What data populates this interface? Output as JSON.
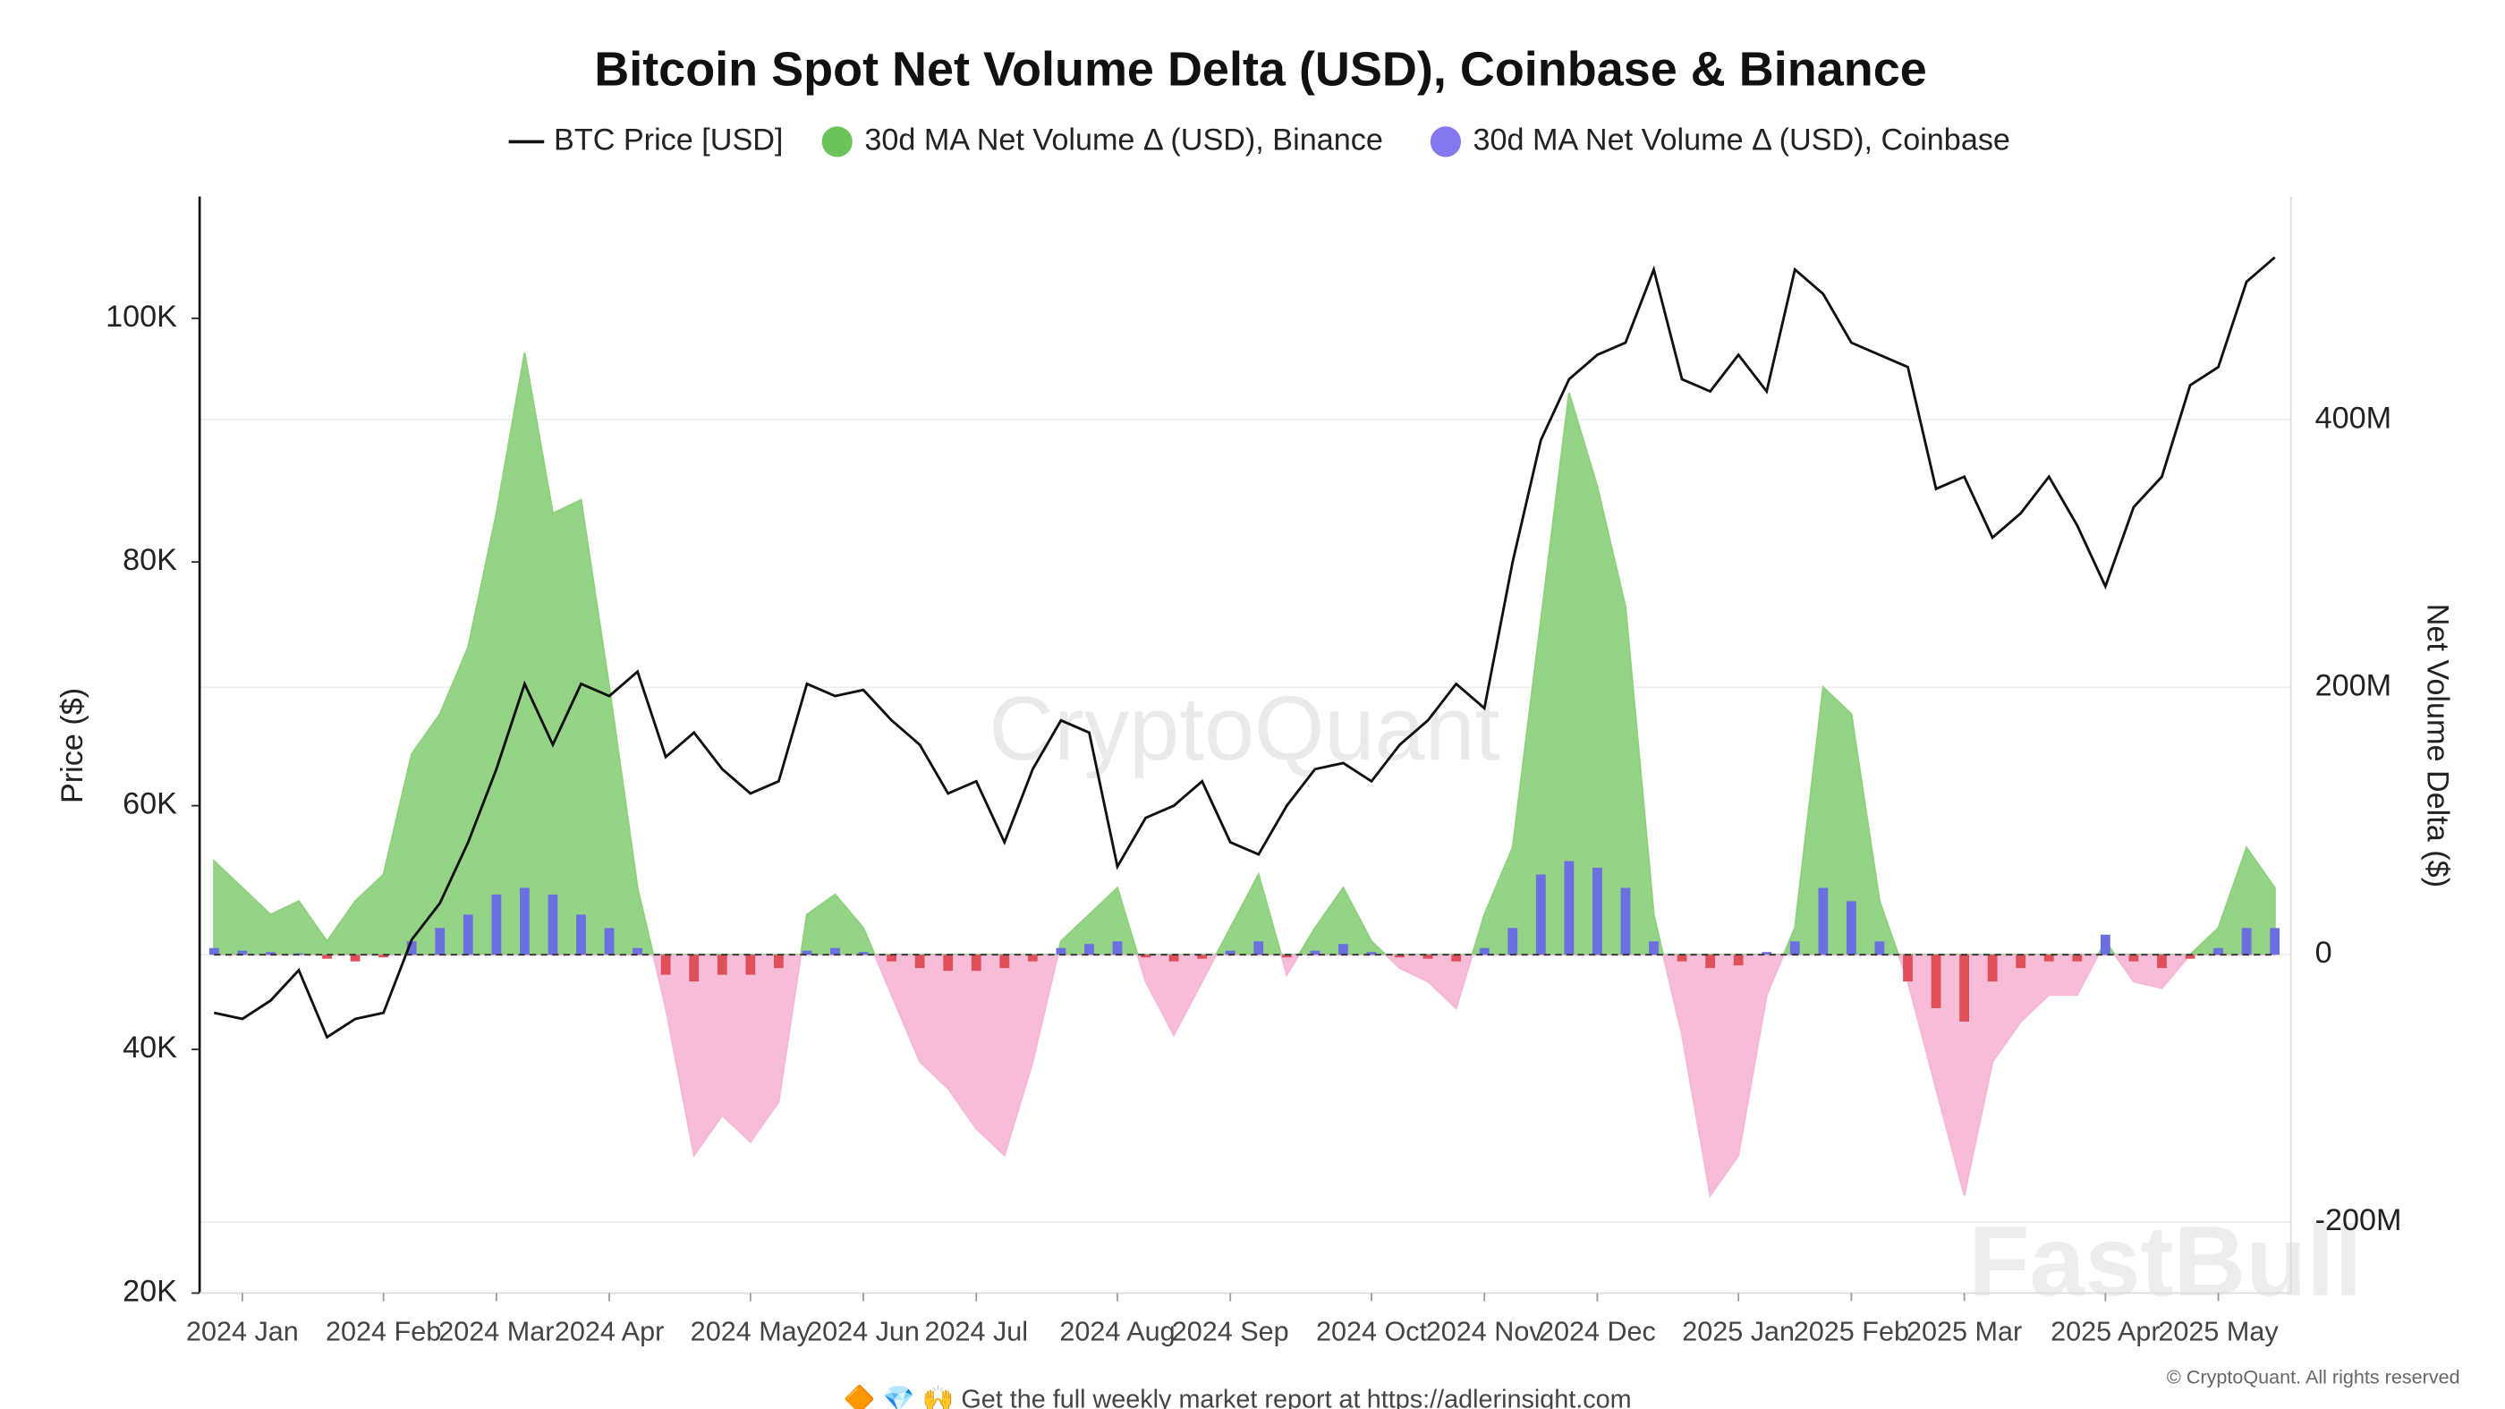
{
  "chart_data": {
    "type": "combo",
    "title": "Bitcoin Spot Net Volume Delta (USD), Coinbase & Binance",
    "y_label": "Price ($)",
    "y2_label": "Net Volume Delta ($)",
    "watermark": "CryptoQuant",
    "watermark2": "FastBull",
    "footer": "🔶 💎 🙌 Get the full weekly market report at",
    "footer_link": "https://adlerinsight.com",
    "copyright": "© CryptoQuant. All rights reserved",
    "categories": [
      null,
      "2024 Jan",
      null,
      null,
      null,
      null,
      "2024 Feb",
      null,
      null,
      null,
      "2024 Mar",
      null,
      null,
      null,
      "2024 Apr",
      null,
      null,
      null,
      null,
      "2024 May",
      null,
      null,
      null,
      "2024 Jun",
      null,
      null,
      null,
      "2024 Jul",
      null,
      null,
      null,
      null,
      "2024 Aug",
      null,
      null,
      null,
      "2024 Sep",
      null,
      null,
      null,
      null,
      "2024 Oct",
      null,
      null,
      null,
      "2024 Nov",
      null,
      null,
      null,
      "2024 Dec",
      null,
      null,
      null,
      null,
      "2025 Jan",
      null,
      null,
      null,
      "2025 Feb",
      null,
      null,
      null,
      "2025 Mar",
      null,
      null,
      null,
      null,
      "2025 Apr",
      null,
      null,
      null,
      "2025 May",
      null,
      null
    ],
    "ylim": [
      20000,
      110000
    ],
    "yticks": [
      {
        "value": 20000,
        "label": "20K"
      },
      {
        "value": 40000,
        "label": "40K"
      },
      {
        "value": 60000,
        "label": "60K"
      },
      {
        "value": 80000,
        "label": "80K"
      },
      {
        "value": 100000,
        "label": "100K"
      }
    ],
    "y2lim": [
      -253000000,
      567000000
    ],
    "y2ticks": [
      {
        "value": -200000000,
        "label": "-200M"
      },
      0,
      {
        "value": 200000000,
        "label": "200M"
      },
      {
        "value": 400000000,
        "label": "400M"
      }
    ],
    "grid": true,
    "legend": "top",
    "series": [
      {
        "name": "BTC Price [USD]",
        "kind": "line",
        "color": "#111111",
        "values": [
          43000,
          42500,
          44000,
          46500,
          41000,
          42500,
          43000,
          49000,
          52000,
          57000,
          63000,
          70000,
          65000,
          70000,
          69000,
          71000,
          64000,
          66000,
          63000,
          61000,
          62000,
          70000,
          69000,
          69500,
          67000,
          65000,
          61000,
          62000,
          57000,
          63000,
          67000,
          66000,
          55000,
          59000,
          60000,
          62000,
          57000,
          56000,
          60000,
          63000,
          63500,
          62000,
          65000,
          67000,
          70000,
          68000,
          80000,
          90000,
          95000,
          97000,
          98000,
          104000,
          95000,
          94000,
          97000,
          94000,
          104000,
          102000,
          98000,
          97000,
          96000,
          86000,
          87000,
          82000,
          84000,
          87000,
          83000,
          78000,
          84500,
          87000,
          94500,
          96000,
          103000,
          105000
        ]
      },
      {
        "name": "30d MA Net Volume Δ (USD), Binance",
        "kind": "area",
        "axis": "y2",
        "color": "#8fd17f",
        "negative_color": "#f5b8d6",
        "legend_color": "#6cc35a",
        "values": [
          70000000,
          50000000,
          30000000,
          40000000,
          10000000,
          40000000,
          60000000,
          150000000,
          180000000,
          230000000,
          330000000,
          450000000,
          330000000,
          340000000,
          200000000,
          50000000,
          -40000000,
          -150000000,
          -120000000,
          -140000000,
          -110000000,
          30000000,
          45000000,
          20000000,
          -30000000,
          -80000000,
          -100000000,
          -130000000,
          -150000000,
          -80000000,
          10000000,
          30000000,
          50000000,
          -20000000,
          -60000000,
          -20000000,
          20000000,
          60000000,
          -15000000,
          20000000,
          50000000,
          10000000,
          -10000000,
          -20000000,
          -40000000,
          30000000,
          80000000,
          250000000,
          420000000,
          350000000,
          260000000,
          30000000,
          -60000000,
          -180000000,
          -150000000,
          -30000000,
          20000000,
          200000000,
          180000000,
          40000000,
          -20000000,
          -100000000,
          -180000000,
          -80000000,
          -50000000,
          -30000000,
          -30000000,
          10000000,
          -20000000,
          -25000000,
          0,
          20000000,
          80000000,
          50000000
        ]
      },
      {
        "name": "30d MA Net Volume Δ (USD), Coinbase",
        "kind": "bar",
        "axis": "y2",
        "color": "#6b6fe0",
        "negative_color": "#e0505a",
        "legend_color": "#8378f0",
        "values": [
          5000000,
          3000000,
          2000000,
          1000000,
          -3000000,
          -5000000,
          -2000000,
          10000000,
          20000000,
          30000000,
          45000000,
          50000000,
          45000000,
          30000000,
          20000000,
          5000000,
          -15000000,
          -20000000,
          -15000000,
          -15000000,
          -10000000,
          3000000,
          5000000,
          2000000,
          -5000000,
          -10000000,
          -12000000,
          -12000000,
          -10000000,
          -5000000,
          5000000,
          8000000,
          10000000,
          -2000000,
          -5000000,
          -3000000,
          3000000,
          10000000,
          -2000000,
          3000000,
          8000000,
          2000000,
          -2000000,
          -3000000,
          -5000000,
          5000000,
          20000000,
          60000000,
          70000000,
          65000000,
          50000000,
          10000000,
          -5000000,
          -10000000,
          -8000000,
          2000000,
          10000000,
          50000000,
          40000000,
          10000000,
          -20000000,
          -40000000,
          -50000000,
          -20000000,
          -10000000,
          -5000000,
          -5000000,
          15000000,
          -5000000,
          -10000000,
          -3000000,
          5000000,
          20000000,
          20000000
        ]
      }
    ]
  }
}
